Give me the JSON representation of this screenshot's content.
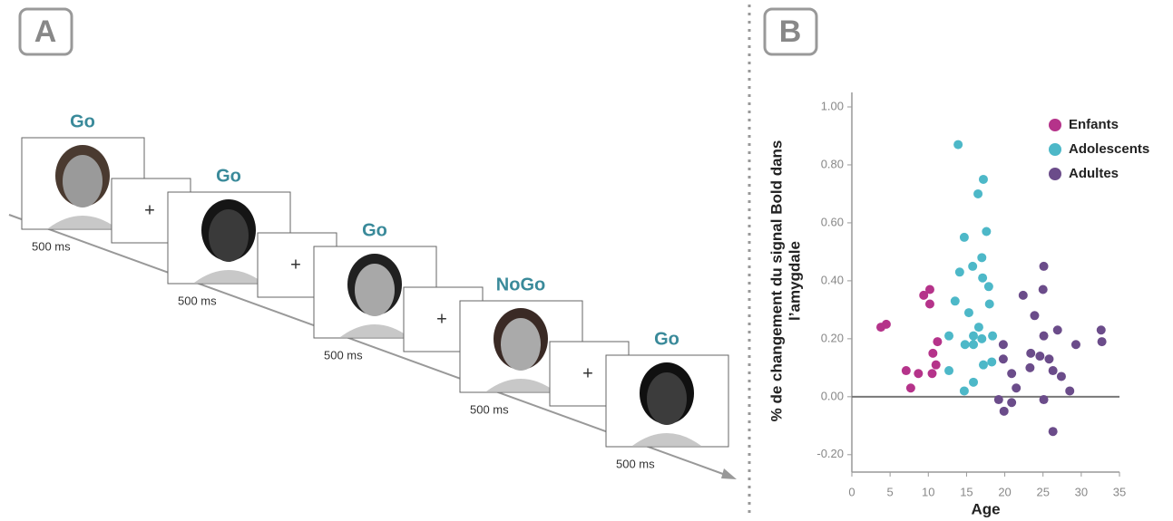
{
  "panel_a": {
    "label": "A",
    "trials": [
      {
        "cue": "Go",
        "duration": "500 ms"
      },
      {
        "cue": "Go",
        "duration": "500 ms"
      },
      {
        "cue": "Go",
        "duration": "500 ms"
      },
      {
        "cue": "NoGo",
        "duration": "500 ms"
      },
      {
        "cue": "Go",
        "duration": "500 ms"
      }
    ],
    "fixations": [
      "+",
      "+",
      "+",
      "+"
    ]
  },
  "chart_data": {
    "type": "scatter",
    "panel_label": "B",
    "xlabel": "Age",
    "ylabel": [
      "% de changement du signal Bold dans",
      "l’amygdale"
    ],
    "xlim": [
      0,
      35
    ],
    "xticks": [
      0,
      5,
      10,
      15,
      20,
      25,
      30,
      35
    ],
    "ylim": [
      -0.26,
      1.05
    ],
    "yticks": [
      {
        "value": -0.2,
        "label": "-0.20"
      },
      {
        "value": 0,
        "label": "0.00"
      },
      {
        "value": 0.2,
        "label": "0.20"
      },
      {
        "value": 0.4,
        "label": "0.40"
      },
      {
        "value": 0.6,
        "label": "0.60"
      },
      {
        "value": 0.8,
        "label": "0.80"
      },
      {
        "value": 1.0,
        "label": "1.00"
      }
    ],
    "legend": "upper right",
    "series": [
      {
        "name": "Enfants",
        "color": "#b5338a",
        "x": [
          3.8,
          4.5,
          9.4,
          10.2,
          10.2,
          11.2,
          10.6,
          11.0,
          10.5,
          8.7,
          7.1,
          7.7
        ],
        "values": [
          0.24,
          0.25,
          0.35,
          0.37,
          0.32,
          0.19,
          0.15,
          0.11,
          0.08,
          0.08,
          0.09,
          0.03
        ]
      },
      {
        "name": "Adolescents",
        "color": "#4db8c8",
        "x": [
          13.9,
          17.2,
          16.5,
          14.7,
          17.6,
          17.0,
          15.8,
          14.1,
          17.1,
          17.9,
          13.5,
          18.0,
          15.3,
          16.6,
          12.7,
          15.9,
          18.4,
          17.0,
          14.8,
          15.9,
          18.3,
          17.2,
          12.7,
          15.9,
          14.7
        ],
        "values": [
          0.87,
          0.75,
          0.7,
          0.55,
          0.57,
          0.48,
          0.45,
          0.43,
          0.41,
          0.38,
          0.33,
          0.32,
          0.29,
          0.24,
          0.21,
          0.21,
          0.21,
          0.2,
          0.18,
          0.18,
          0.12,
          0.11,
          0.09,
          0.05,
          0.02
        ]
      },
      {
        "name": "Adultes",
        "color": "#6b4c8a",
        "x": [
          25.1,
          22.4,
          25.0,
          23.9,
          26.9,
          25.1,
          32.6,
          32.7,
          29.3,
          19.8,
          23.4,
          24.6,
          25.8,
          19.8,
          23.3,
          26.3,
          27.4,
          20.9,
          21.5,
          28.5,
          19.2,
          20.9,
          25.1,
          19.9,
          26.3
        ],
        "values": [
          0.45,
          0.35,
          0.37,
          0.28,
          0.23,
          0.21,
          0.23,
          0.19,
          0.18,
          0.18,
          0.15,
          0.14,
          0.13,
          0.13,
          0.1,
          0.09,
          0.07,
          0.08,
          0.03,
          0.02,
          -0.01,
          -0.02,
          -0.01,
          -0.05,
          -0.12
        ]
      }
    ]
  }
}
